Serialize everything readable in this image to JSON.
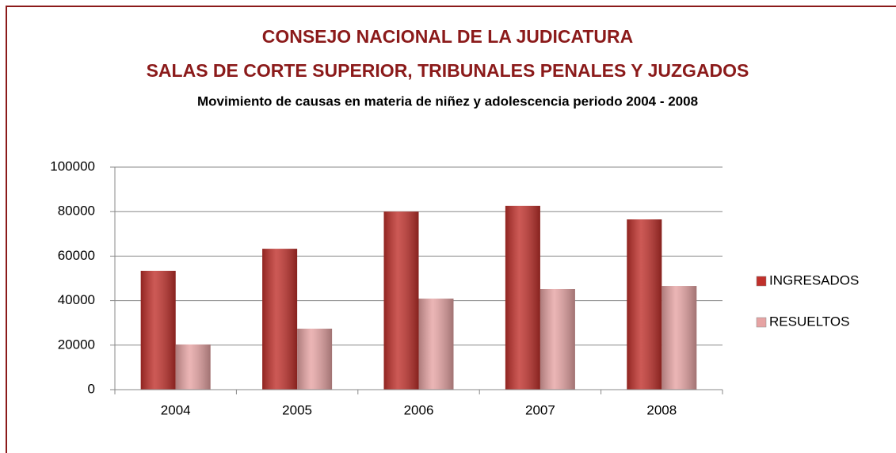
{
  "chart_data": {
    "type": "bar",
    "title": [
      "CONSEJO NACIONAL DE LA JUDICATURA",
      "SALAS DE CORTE SUPERIOR, TRIBUNALES PENALES Y JUZGADOS"
    ],
    "subtitle": "Movimiento de causas en materia de niñez y adolescencia periodo 2004 - 2008",
    "categories": [
      "2004",
      "2005",
      "2006",
      "2007",
      "2008"
    ],
    "series": [
      {
        "name": "INGRESADOS",
        "color": "#c0302b",
        "values": [
          53400,
          63300,
          80000,
          82600,
          76500
        ]
      },
      {
        "name": "RESUELTOS",
        "color": "#e6a3a3",
        "values": [
          20300,
          27400,
          40900,
          45200,
          46600
        ]
      }
    ],
    "ylim": [
      0,
      100000
    ],
    "yticks": [
      0,
      20000,
      40000,
      60000,
      80000,
      100000
    ],
    "grid": true,
    "legend": "right"
  }
}
